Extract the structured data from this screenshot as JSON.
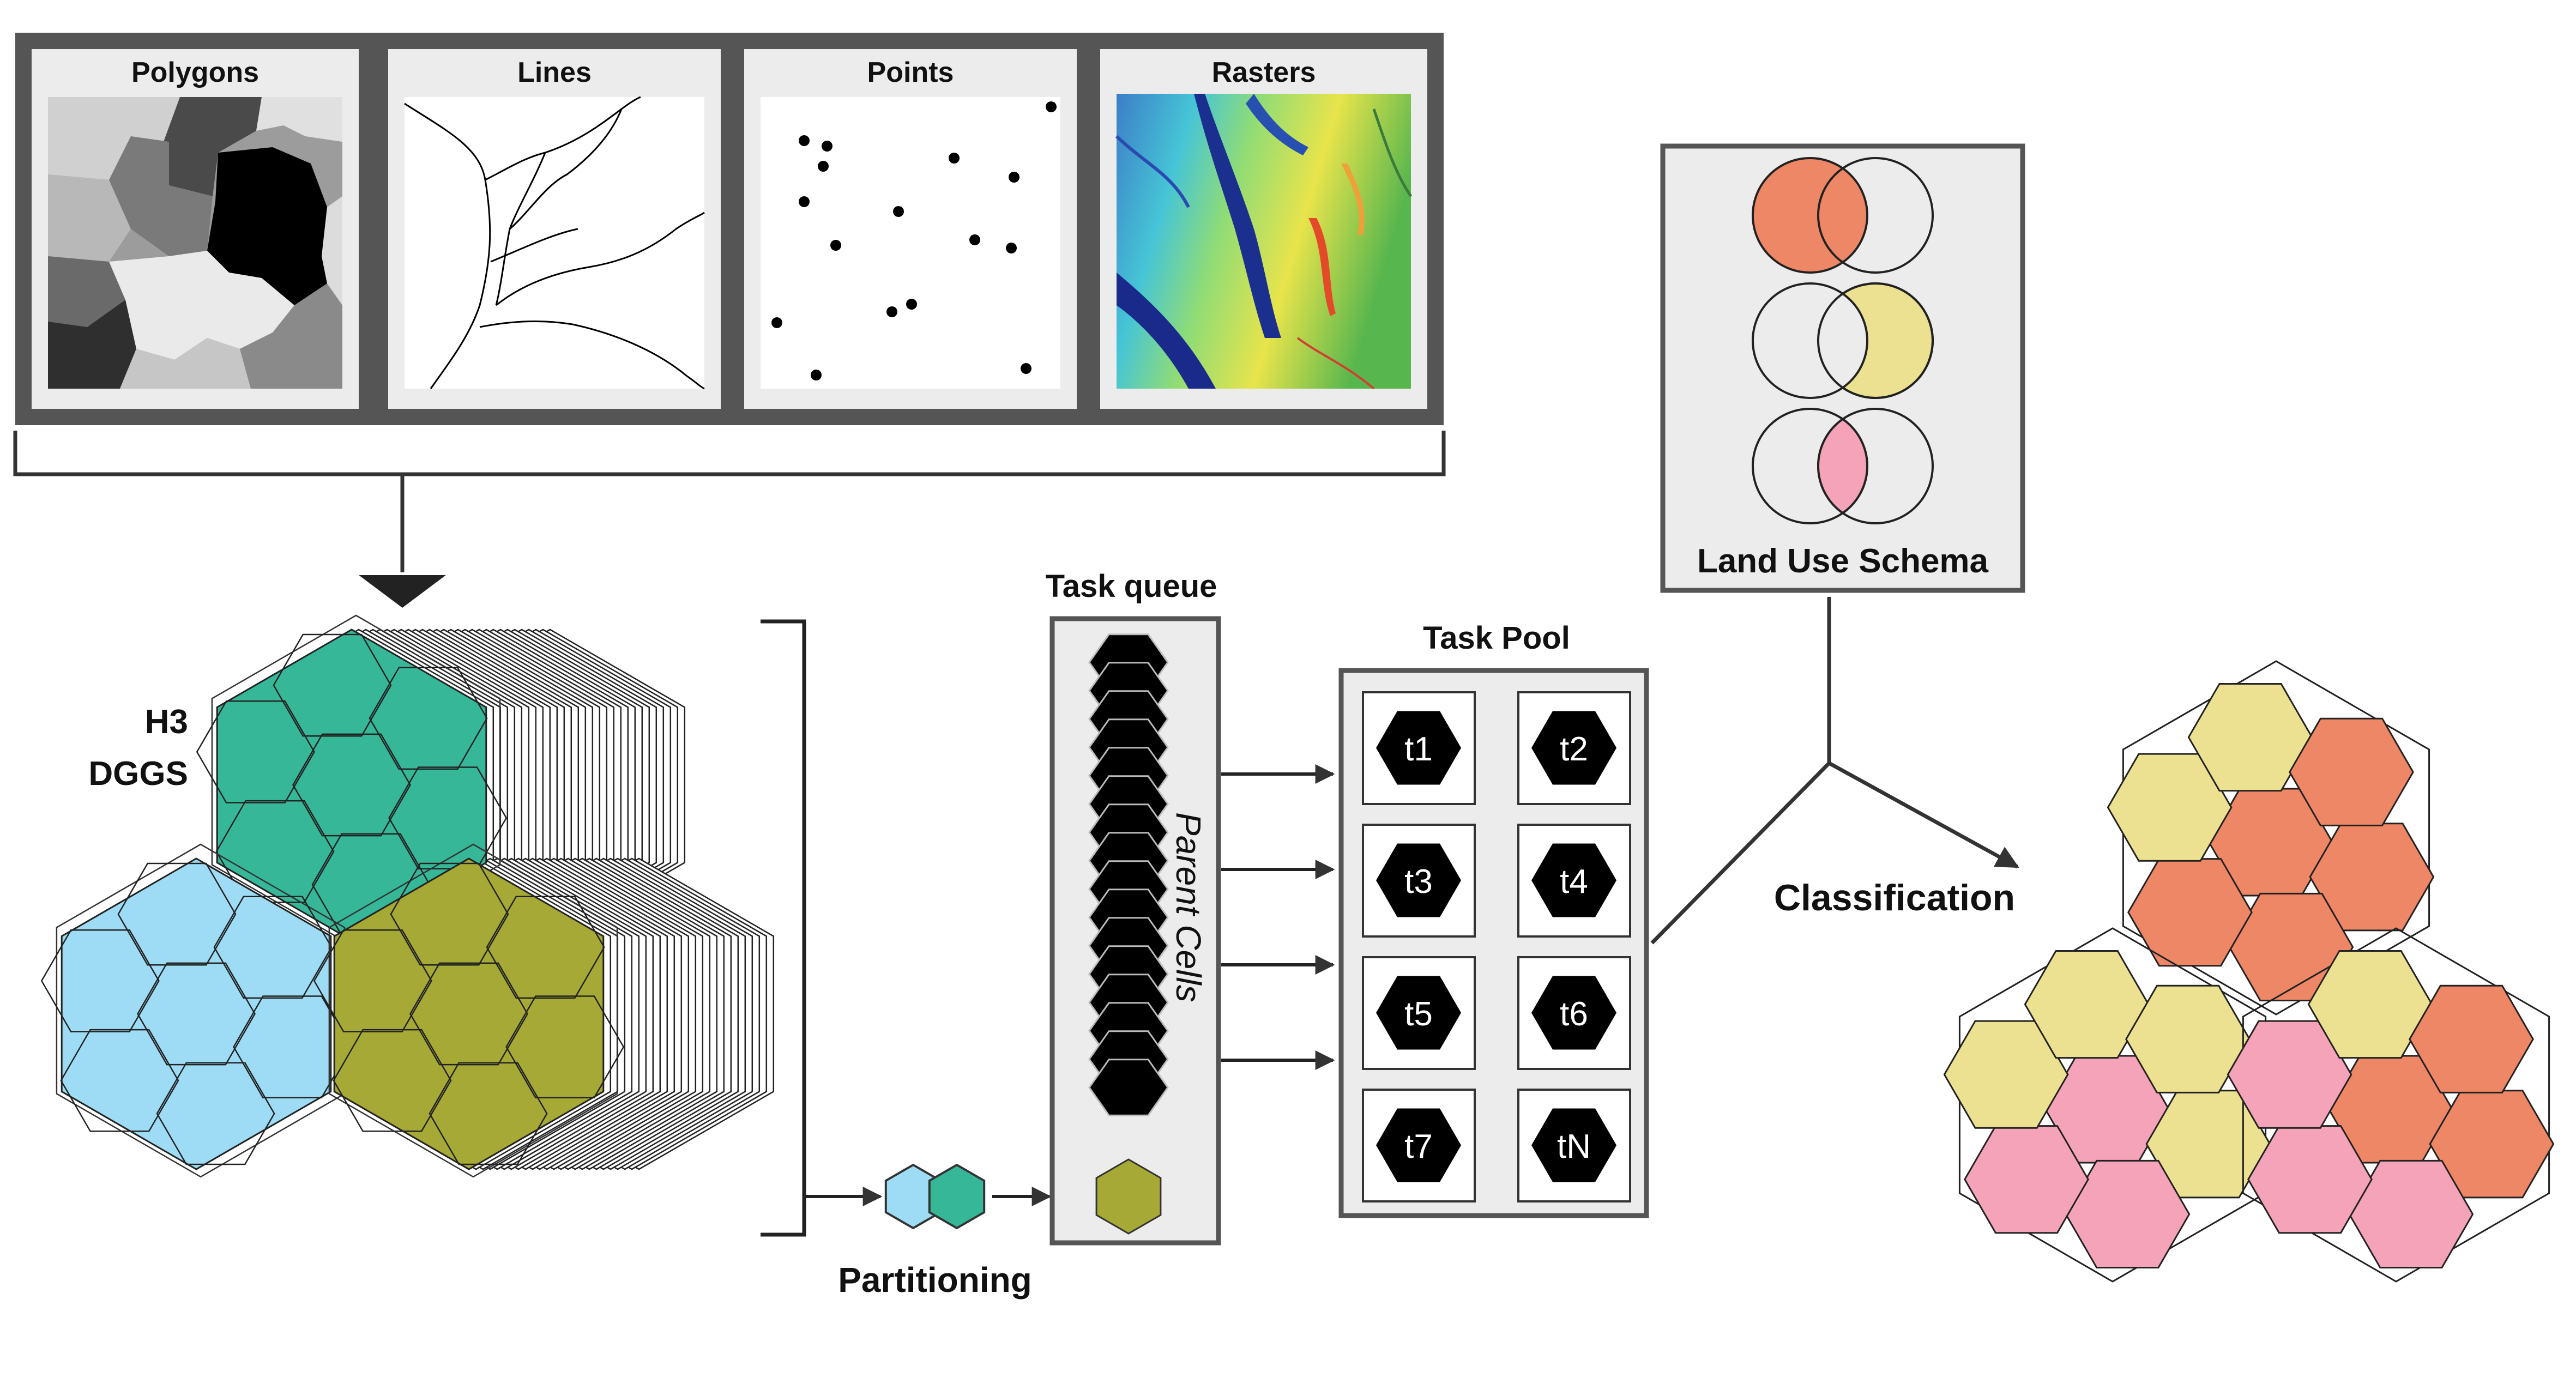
{
  "inputs": {
    "polygons_label": "Polygons",
    "lines_label": "Lines",
    "points_label": "Points",
    "rasters_label": "Rasters"
  },
  "h3": {
    "line1": "H3",
    "line2": "DGGS"
  },
  "partitioning_label": "Partitioning",
  "task_queue": {
    "title": "Task queue",
    "side_label": "Parent Cells"
  },
  "task_pool": {
    "title": "Task Pool",
    "tasks": [
      "t1",
      "t2",
      "t3",
      "t4",
      "t5",
      "t6",
      "t7",
      "tN"
    ]
  },
  "land_use_schema_label": "Land Use Schema",
  "classification_label": "Classification",
  "colors": {
    "teal": "#36b898",
    "light_blue": "#9edcf5",
    "olive": "#a6a935",
    "orange": "#ee8766",
    "yellow": "#ece190",
    "pink": "#f5a3b8",
    "frame": "#555555",
    "panel_bg": "#ececec"
  }
}
